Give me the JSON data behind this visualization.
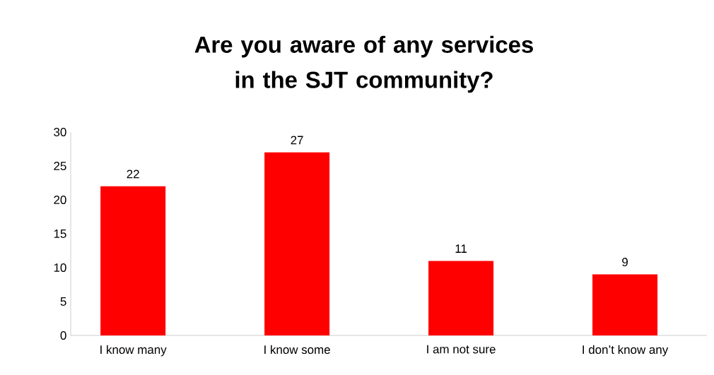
{
  "chart_data": {
    "type": "bar",
    "title": "Are you aware of any services in the SJT community?",
    "categories": [
      "I know many",
      "I know some",
      "I am not sure",
      "I don’t know any"
    ],
    "values": [
      22,
      27,
      11,
      9
    ],
    "color": "#ff0000",
    "ylim": [
      0,
      30
    ],
    "yticks": [
      0,
      5,
      10,
      15,
      20,
      25,
      30
    ],
    "grid": false,
    "data_labels": true
  }
}
